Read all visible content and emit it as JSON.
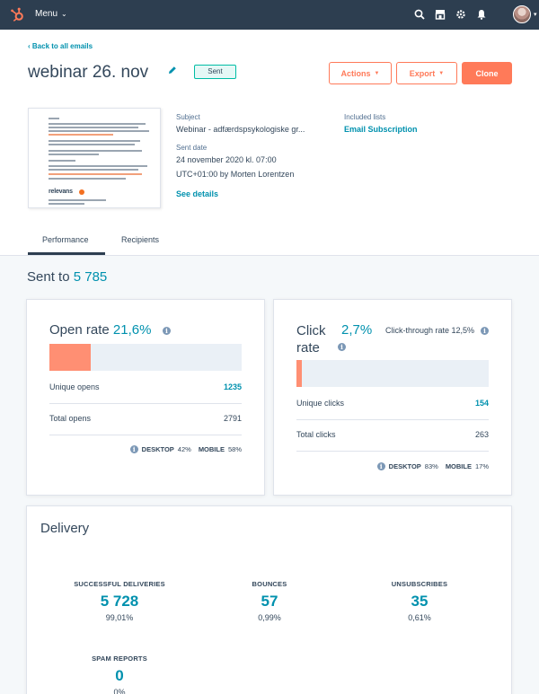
{
  "topnav": {
    "menu_label": "Menu"
  },
  "header": {
    "back_label": "Back to all emails",
    "email_title": "webinar 26. nov",
    "status": "Sent",
    "actions_label": "Actions",
    "export_label": "Export",
    "clone_label": "Clone"
  },
  "details": {
    "subject_label": "Subject",
    "subject_value": "Webinar - adfærdspsykologiske gr...",
    "sent_date_label": "Sent date",
    "sent_date_line1": "24 november 2020 kl. 07:00",
    "sent_date_line2": "UTC+01:00 by Morten Lorentzen",
    "see_details": "See details",
    "lists_label": "Included lists",
    "lists_value": "Email Subscription",
    "thumbnail_logo": "relevans"
  },
  "tabs": {
    "performance": "Performance",
    "recipients": "Recipients"
  },
  "sent_to": {
    "label": "Sent to",
    "value": "5 785"
  },
  "open_rate": {
    "label": "Open rate",
    "value": "21,6%",
    "fill_percent": 21.6,
    "unique_label": "Unique opens",
    "unique_value": "1235",
    "total_label": "Total opens",
    "total_value": "2791",
    "desktop_label": "DESKTOP",
    "desktop_value": "42%",
    "mobile_label": "MOBILE",
    "mobile_value": "58%"
  },
  "click_rate": {
    "label_line1": "Click",
    "label_line2": "rate",
    "value": "2,7%",
    "ctr_label": "Click-through rate 12,5%",
    "fill_percent": 2.7,
    "unique_label": "Unique clicks",
    "unique_value": "154",
    "total_label": "Total clicks",
    "total_value": "263",
    "desktop_label": "DESKTOP",
    "desktop_value": "83%",
    "mobile_label": "MOBILE",
    "mobile_value": "17%"
  },
  "delivery": {
    "title": "Delivery",
    "stats": [
      {
        "label": "SUCCESSFUL DELIVERIES",
        "value": "5 728",
        "pct": "99,01%"
      },
      {
        "label": "BOUNCES",
        "value": "57",
        "pct": "0,99%"
      },
      {
        "label": "UNSUBSCRIBES",
        "value": "35",
        "pct": "0,61%"
      },
      {
        "label": "SPAM REPORTS",
        "value": "0",
        "pct": "0%"
      }
    ]
  },
  "colors": {
    "accent": "#0091ae",
    "orange": "#ff7a59",
    "nav": "#2d3e50"
  }
}
